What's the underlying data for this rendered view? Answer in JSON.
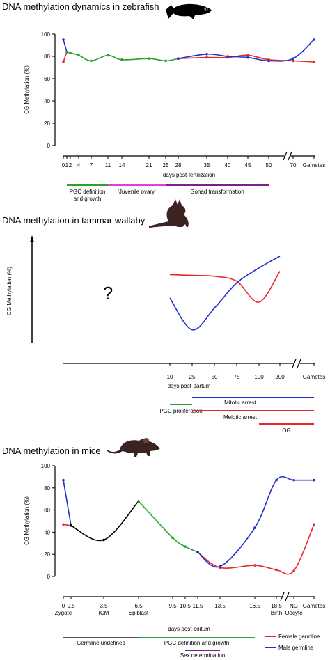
{
  "colors": {
    "red": "#e8262a",
    "blue": "#1f2fc9",
    "green": "#2ca12c",
    "magenta": "#e23fd6",
    "purple": "#7a1f8f",
    "black": "#000000",
    "gray": "#555555",
    "animal": "#3a2320"
  },
  "chart_data": [
    {
      "type": "line",
      "title": "DNA methylation dynamics in zebrafish",
      "icon": "zebrafish-icon",
      "ylabel": "CG Methylation (%)",
      "xlabel": "days post-fertilization",
      "ylim": [
        0,
        100
      ],
      "yticks": [
        0,
        20,
        40,
        60,
        80,
        100
      ],
      "xticks": [
        "0",
        "1",
        "2",
        "4",
        "7",
        "11",
        "14",
        "21",
        "25",
        "28",
        "35",
        "40",
        "45",
        "50",
        "70",
        "Gametes"
      ],
      "series": [
        {
          "color": "red",
          "segment": "female germline",
          "points": [
            [
              "0",
              75
            ],
            [
              "1",
              84
            ]
          ]
        },
        {
          "color": "blue",
          "segment": "male germline",
          "points": [
            [
              "0",
              95
            ],
            [
              "1",
              84
            ]
          ]
        },
        {
          "color": "green",
          "segment": "shared germline",
          "points": [
            [
              "1",
              84
            ],
            [
              "2",
              83
            ],
            [
              "4",
              81
            ],
            [
              "7",
              76
            ],
            [
              "11",
              81
            ],
            [
              "14",
              77
            ],
            [
              "21",
              78
            ],
            [
              "25",
              76
            ],
            [
              "28",
              78
            ]
          ]
        },
        {
          "color": "red",
          "segment": "female germline",
          "points": [
            [
              "28",
              78
            ],
            [
              "35",
              79
            ],
            [
              "40",
              79
            ],
            [
              "45",
              81
            ],
            [
              "50",
              77
            ],
            [
              "70",
              76
            ],
            [
              "Gametes",
              75
            ]
          ]
        },
        {
          "color": "blue",
          "segment": "male germline",
          "points": [
            [
              "28",
              78
            ],
            [
              "35",
              82
            ],
            [
              "40",
              80
            ],
            [
              "45",
              79
            ],
            [
              "50",
              76
            ],
            [
              "70",
              78
            ],
            [
              "Gametes",
              95
            ]
          ]
        }
      ],
      "stages": [
        {
          "label": "PGC definition and growth",
          "label_lines": [
            "PGC definition",
            "and growth"
          ],
          "color": "green",
          "from": "1",
          "to": "11"
        },
        {
          "label": "'Juvenile ovary'",
          "color": "magenta",
          "from": "11",
          "to": "25"
        },
        {
          "label": "Gonad transformation",
          "color": "purple",
          "from": "25",
          "to": "50"
        }
      ]
    },
    {
      "type": "line",
      "title": "DNA methylation in tammar wallaby",
      "icon": "wallaby-icon",
      "ylabel": "CG Methylation (%)",
      "xlabel": "days post-partum",
      "annotation": "?",
      "xticks": [
        "10",
        "25",
        "50",
        "75",
        "100",
        "200",
        "Gametes"
      ],
      "yticks": [],
      "series": [
        {
          "color": "red",
          "segment": "female germline",
          "points": [
            [
              "10",
              78
            ],
            [
              "25",
              77
            ],
            [
              "50",
              76
            ],
            [
              "75",
              70
            ],
            [
              "100",
              45
            ],
            [
              "200",
              82
            ]
          ]
        },
        {
          "color": "blue",
          "segment": "male germline",
          "points": [
            [
              "10",
              50
            ],
            [
              "25",
              12
            ],
            [
              "50",
              38
            ],
            [
              "75",
              68
            ],
            [
              "100",
              86
            ],
            [
              "200",
              100
            ]
          ]
        }
      ],
      "stages": [
        {
          "label": "PGC proliferation",
          "color": "green",
          "from": "10",
          "to": "25"
        },
        {
          "label": "Mitotic arrest",
          "color": "blue",
          "from": "25",
          "to": "Gametes"
        },
        {
          "label": "Meiotic arrest",
          "color": "red",
          "from": "25",
          "to": "Gametes"
        },
        {
          "label": "OG",
          "color": "red",
          "from": "100",
          "to": "Gametes"
        }
      ]
    },
    {
      "type": "line",
      "title": "DNA methylation in mice",
      "icon": "mouse-icon",
      "ylabel": "CG Methylation (%)",
      "xlabel": "days post-coitum",
      "ylim": [
        0,
        100
      ],
      "yticks": [
        0,
        20,
        40,
        60,
        80,
        100
      ],
      "xticks": [
        "0",
        "0.5",
        "3.5",
        "6.5",
        "9.5",
        "10.5",
        "11.5",
        "13.5",
        "16.5",
        "18.5",
        "NG",
        "Gametes"
      ],
      "xstage_labels": [
        {
          "at": "0",
          "label": "Zygote"
        },
        {
          "at": "3.5",
          "label": "ICM"
        },
        {
          "at": "6.5",
          "label": "Epiblast"
        },
        {
          "at": "18.5",
          "label": "Birth"
        },
        {
          "at": "NG",
          "label": "Oocyte"
        }
      ],
      "series": [
        {
          "color": "red",
          "segment": "female germline",
          "points": [
            [
              "0",
              47
            ],
            [
              "0.5",
              46
            ]
          ]
        },
        {
          "color": "blue",
          "segment": "male germline",
          "points": [
            [
              "0",
              87
            ],
            [
              "0.5",
              46
            ]
          ]
        },
        {
          "color": "black",
          "segment": "early embryo",
          "points": [
            [
              "0.5",
              46
            ],
            [
              "3.5",
              33
            ],
            [
              "6.5",
              68
            ]
          ]
        },
        {
          "color": "green",
          "segment": "shared germline",
          "points": [
            [
              "6.5",
              68
            ],
            [
              "9.5",
              35
            ],
            [
              "10.5",
              27
            ],
            [
              "11.5",
              22
            ]
          ]
        },
        {
          "color": "red",
          "segment": "female germline",
          "points": [
            [
              "11.5",
              22
            ],
            [
              "13.5",
              8
            ],
            [
              "16.5",
              10
            ],
            [
              "18.5",
              6
            ],
            [
              "NG",
              5
            ],
            [
              "Gametes",
              47
            ]
          ]
        },
        {
          "color": "blue",
          "segment": "male germline",
          "points": [
            [
              "11.5",
              22
            ],
            [
              "13.5",
              9
            ],
            [
              "16.5",
              44
            ],
            [
              "18.5",
              87
            ],
            [
              "NG",
              87
            ],
            [
              "Gametes",
              87
            ]
          ]
        }
      ],
      "stages": [
        {
          "label": "Germline undefined",
          "color": "gray",
          "from": "0",
          "to": "6.5"
        },
        {
          "label": "PGC definition and growth",
          "color": "green",
          "from": "6.5",
          "to": "16.5"
        },
        {
          "label": "Sex determination",
          "color": "purple",
          "from": "10.5",
          "to": "13.5"
        }
      ],
      "legend": {
        "position": "bottom-right",
        "items": [
          {
            "label": "Female germline",
            "color": "red"
          },
          {
            "label": "Male germline",
            "color": "blue"
          }
        ]
      }
    }
  ]
}
